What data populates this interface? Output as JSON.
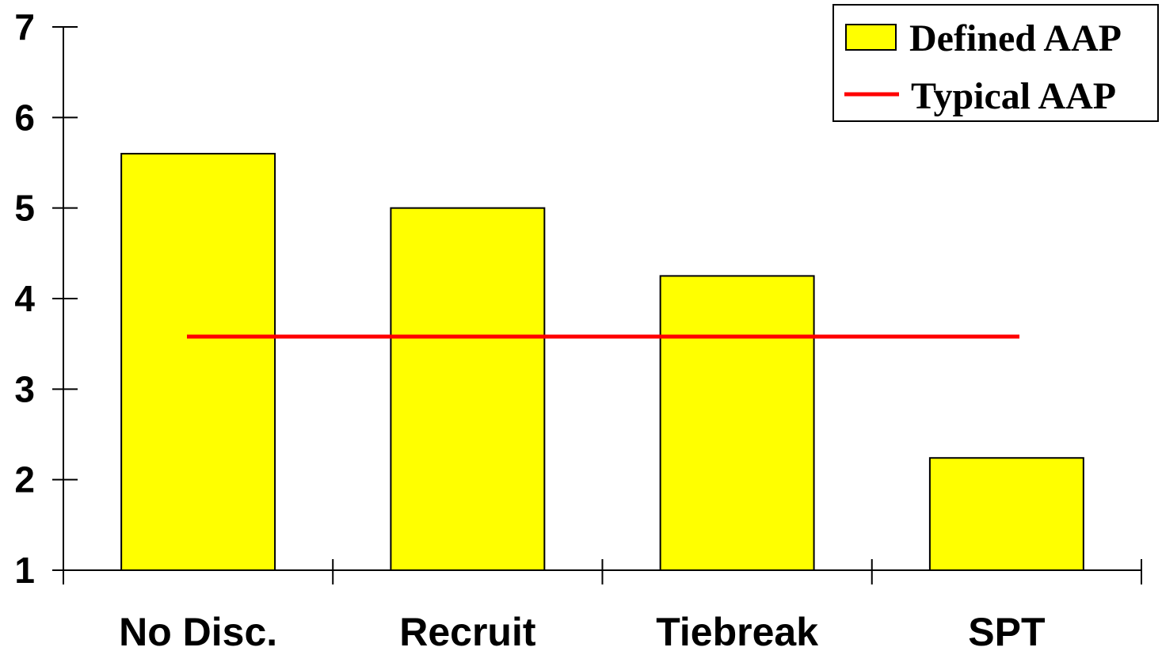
{
  "chart_data": {
    "type": "bar",
    "categories": [
      "No Disc.",
      "Recruit",
      "Tiebreak",
      "SPT"
    ],
    "series": [
      {
        "name": "Defined AAP",
        "type": "bar",
        "values": [
          5.6,
          5.0,
          4.25,
          2.24
        ],
        "color": "#ffff00"
      },
      {
        "name": "Typical AAP",
        "type": "line",
        "value": 3.58,
        "color": "#ff0000"
      }
    ],
    "ylim": [
      1,
      7
    ],
    "yticks": [
      1,
      2,
      3,
      4,
      5,
      6,
      7
    ],
    "title": "",
    "xlabel": "",
    "ylabel": "",
    "grid": false,
    "legend_position": "top-right"
  }
}
